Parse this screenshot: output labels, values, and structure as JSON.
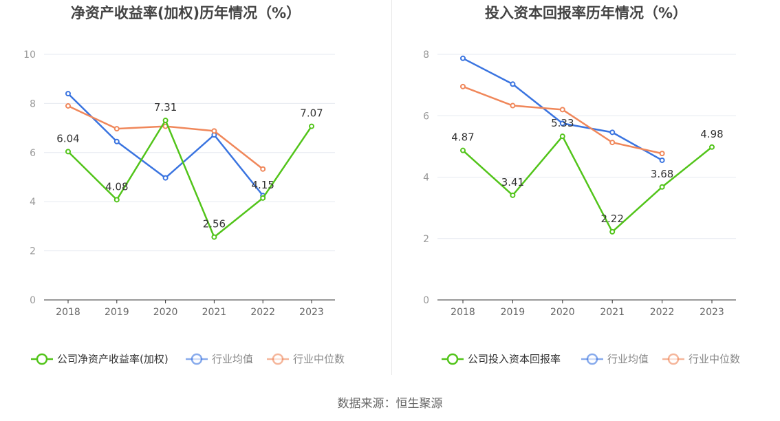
{
  "source": "数据来源：恒生聚源",
  "colors": {
    "company": "#52c41a",
    "avg": "#3a74e0",
    "median": "#f0875a",
    "axis": "#333333",
    "grid": "#e6e9f0",
    "tick": "#999999"
  },
  "chart_data": [
    {
      "type": "line",
      "title": "净资产收益率(加权)历年情况（%）",
      "categories": [
        "2018",
        "2019",
        "2020",
        "2021",
        "2022",
        "2023"
      ],
      "ylim": [
        0,
        10
      ],
      "yticks": [
        0,
        2,
        4,
        6,
        8,
        10
      ],
      "grid": true,
      "legend_position": "bottom",
      "series": [
        {
          "name": "公司净资产收益率(加权)",
          "key": "company",
          "values": [
            6.04,
            4.08,
            7.31,
            2.56,
            4.15,
            7.07
          ],
          "labels": [
            "6.04",
            "4.08",
            "7.31",
            "2.56",
            "4.15",
            "7.07"
          ]
        },
        {
          "name": "行业均值",
          "key": "avg",
          "values": [
            8.4,
            6.45,
            4.97,
            6.72,
            4.25,
            null
          ]
        },
        {
          "name": "行业中位数",
          "key": "median",
          "values": [
            7.9,
            6.97,
            7.07,
            6.88,
            5.33,
            null
          ]
        }
      ]
    },
    {
      "type": "line",
      "title": "投入资本回报率历年情况（%）",
      "categories": [
        "2018",
        "2019",
        "2020",
        "2021",
        "2022",
        "2023"
      ],
      "ylim": [
        0,
        8
      ],
      "yticks": [
        0,
        2,
        4,
        6,
        8
      ],
      "grid": true,
      "legend_position": "bottom",
      "series": [
        {
          "name": "公司投入资本回报率",
          "key": "company",
          "values": [
            4.87,
            3.41,
            5.33,
            2.22,
            3.68,
            4.98
          ],
          "labels": [
            "4.87",
            "3.41",
            "5.33",
            "2.22",
            "3.68",
            "4.98"
          ]
        },
        {
          "name": "行业均值",
          "key": "avg",
          "values": [
            7.87,
            7.03,
            5.75,
            5.46,
            4.55,
            null
          ]
        },
        {
          "name": "行业中位数",
          "key": "median",
          "values": [
            6.95,
            6.33,
            6.2,
            5.13,
            4.77,
            null
          ]
        }
      ]
    }
  ]
}
